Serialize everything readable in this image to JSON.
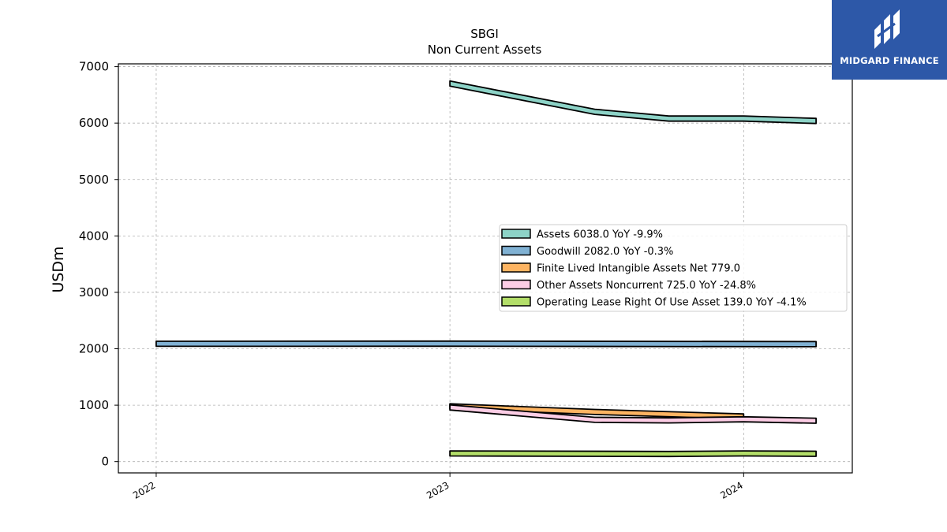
{
  "brand": {
    "name": "MIDGARD FINANCE",
    "logo_color": "#2d58a8"
  },
  "chart_data": {
    "type": "area",
    "title": "SBGI",
    "subtitle": "Non Current  Assets",
    "ylabel": "USDm",
    "xlabel": "",
    "ylim": [
      -200,
      7050
    ],
    "yticks": [
      0,
      1000,
      2000,
      3000,
      4000,
      5000,
      6000,
      7000
    ],
    "xlim": [
      "2021-11-15",
      "2024-05-15"
    ],
    "xticks": [
      "2022",
      "2023",
      "2024"
    ],
    "grid": true,
    "legend_position": "center-right",
    "series": [
      {
        "name": "Assets  6038.0 YoY -9.9%",
        "color": "#8dd3c7",
        "points": [
          [
            "2023-01-01",
            6700
          ],
          [
            "2023-06-30",
            6200
          ],
          [
            "2023-09-30",
            6080
          ],
          [
            "2024-01-01",
            6080
          ],
          [
            "2024-03-31",
            6038
          ]
        ]
      },
      {
        "name": "Goodwill  2082.0 YoY -0.3%",
        "color": "#80b1d3",
        "points": [
          [
            "2022-01-01",
            2088
          ],
          [
            "2023-01-01",
            2090
          ],
          [
            "2024-03-31",
            2082
          ]
        ]
      },
      {
        "name": "Finite Lived Intangible Assets Net  779.0",
        "color": "#fdb462",
        "points": [
          [
            "2023-01-01",
            980
          ],
          [
            "2023-06-30",
            880
          ],
          [
            "2024-01-01",
            800
          ]
        ]
      },
      {
        "name": "Other Assets Noncurrent  725.0 YoY -24.8%",
        "color": "#fccde5",
        "points": [
          [
            "2023-01-01",
            960
          ],
          [
            "2023-06-30",
            740
          ],
          [
            "2023-09-30",
            730
          ],
          [
            "2024-01-01",
            750
          ],
          [
            "2024-03-31",
            725
          ]
        ]
      },
      {
        "name": "Operating Lease Right Of Use Asset  139.0 YoY -4.1%",
        "color": "#b3de69",
        "points": [
          [
            "2023-01-01",
            145
          ],
          [
            "2023-09-30",
            135
          ],
          [
            "2024-01-01",
            145
          ],
          [
            "2024-03-31",
            139
          ]
        ]
      }
    ]
  }
}
